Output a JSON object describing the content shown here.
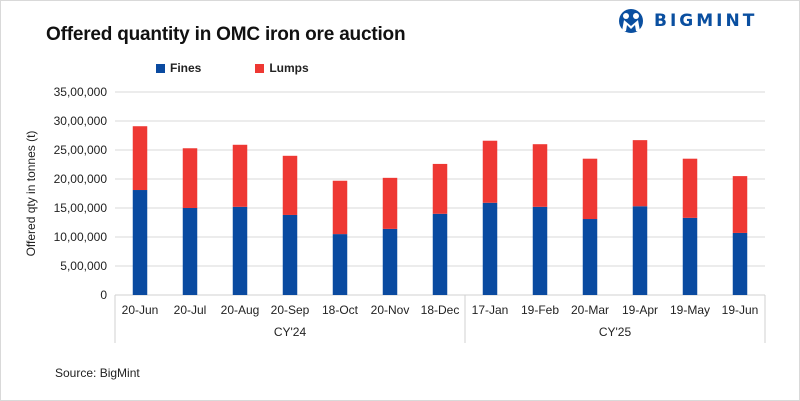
{
  "brand": {
    "name": "BIGMINT",
    "color": "#0a4fa0"
  },
  "footer": {
    "source": "Source: BigMint"
  },
  "chart_data": {
    "type": "bar",
    "stacked": true,
    "title": "Offered quantity in OMC iron ore auction",
    "xlabel": "",
    "ylabel": "Offered qty in tonnes (t)",
    "ylim": [
      0,
      3500000
    ],
    "yticks": [
      0,
      500000,
      1000000,
      1500000,
      2000000,
      2500000,
      3000000,
      3500000
    ],
    "ytick_labels": [
      "0",
      "5,00,000",
      "10,00,000",
      "15,00,000",
      "20,00,000",
      "25,00,000",
      "30,00,000",
      "35,00,000"
    ],
    "grid": true,
    "legend": "top-center",
    "categories": [
      "20-Jun",
      "20-Jul",
      "20-Aug",
      "20-Sep",
      "18-Oct",
      "20-Nov",
      "18-Dec",
      "17-Jan",
      "19-Feb",
      "20-Mar",
      "19-Apr",
      "19-May",
      "19-Jun"
    ],
    "groups": [
      {
        "label": "CY'24",
        "count": 7
      },
      {
        "label": "CY'25",
        "count": 6
      }
    ],
    "series": [
      {
        "name": "Fines",
        "color": "#0a4aa0",
        "values": [
          1810000,
          1500000,
          1520000,
          1380000,
          1050000,
          1140000,
          1400000,
          1590000,
          1520000,
          1310000,
          1530000,
          1330000,
          1070000
        ]
      },
      {
        "name": "Lumps",
        "color": "#ee3833",
        "values": [
          1100000,
          1030000,
          1070000,
          1020000,
          920000,
          880000,
          860000,
          1070000,
          1080000,
          1040000,
          1140000,
          1020000,
          980000
        ]
      }
    ]
  }
}
